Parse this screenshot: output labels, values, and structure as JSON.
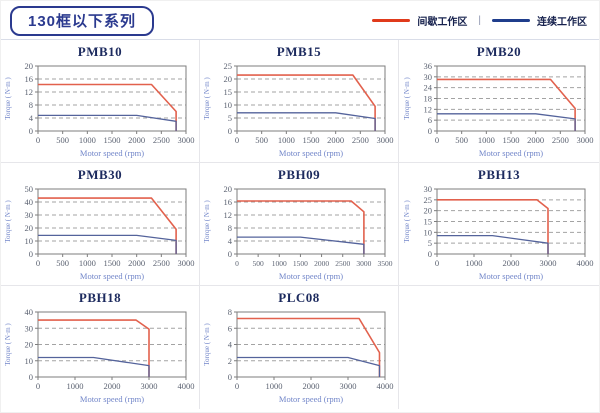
{
  "header": {
    "title": "130框以下系列",
    "legend_separator": "|",
    "legend": [
      {
        "key": "intermittent",
        "label": "间歇工作区",
        "color": "#e03a1b"
      },
      {
        "key": "continuous",
        "label": "连续工作区",
        "color": "#1f3d8c"
      }
    ]
  },
  "colors": {
    "accent_navy": "#2b3a8f",
    "curve_red": "#e2614d",
    "curve_blue": "#54639b",
    "grid_line": "#a3a3a3",
    "axis_text": "#5c6372",
    "axis_label_blue": "#7286c9"
  },
  "chart_data": [
    {
      "type": "line",
      "title": "PMB10",
      "xlabel": "Motor speed (rpm)",
      "ylabel": "Torque ( N·m )",
      "xlim": [
        0,
        3000
      ],
      "ylim": [
        0,
        20
      ],
      "xticks": [
        0,
        500,
        1000,
        1500,
        2000,
        2500,
        3000
      ],
      "yticks": [
        0,
        4,
        8,
        12,
        16,
        20
      ],
      "series": [
        {
          "name": "间歇工作区",
          "key": "intermittent",
          "color": "#e2614d",
          "width": 1.6,
          "points": [
            [
              0,
              14.3
            ],
            [
              2300,
              14.3
            ],
            [
              2800,
              6
            ],
            [
              2800,
              0
            ]
          ]
        },
        {
          "name": "连续工作区",
          "key": "continuous",
          "color": "#54639b",
          "width": 1.3,
          "points": [
            [
              0,
              4.8
            ],
            [
              2000,
              4.8
            ],
            [
              2800,
              3
            ],
            [
              2800,
              0
            ]
          ]
        }
      ]
    },
    {
      "type": "line",
      "title": "PMB15",
      "xlabel": "Motor speed (rpm)",
      "ylabel": "Torque ( N·m )",
      "xlim": [
        0,
        3000
      ],
      "ylim": [
        0,
        25
      ],
      "xticks": [
        0,
        500,
        1000,
        1500,
        2000,
        2500,
        3000
      ],
      "yticks": [
        0,
        5,
        10,
        15,
        20,
        25
      ],
      "series": [
        {
          "name": "间歇工作区",
          "key": "intermittent",
          "color": "#e2614d",
          "width": 1.6,
          "points": [
            [
              0,
              21.5
            ],
            [
              2350,
              21.5
            ],
            [
              2800,
              9.5
            ],
            [
              2800,
              0
            ]
          ]
        },
        {
          "name": "连续工作区",
          "key": "continuous",
          "color": "#54639b",
          "width": 1.3,
          "points": [
            [
              0,
              7
            ],
            [
              2000,
              7
            ],
            [
              2800,
              4.8
            ],
            [
              2800,
              0
            ]
          ]
        }
      ]
    },
    {
      "type": "line",
      "title": "PMB20",
      "xlabel": "Motor speed (rpm)",
      "ylabel": "Torque ( N·m )",
      "xlim": [
        0,
        3000
      ],
      "ylim": [
        0,
        36
      ],
      "xticks": [
        0,
        500,
        1000,
        1500,
        2000,
        2500,
        3000
      ],
      "yticks": [
        0,
        6,
        12,
        18,
        24,
        30,
        36
      ],
      "series": [
        {
          "name": "间歇工作区",
          "key": "intermittent",
          "color": "#e2614d",
          "width": 1.6,
          "points": [
            [
              0,
              28.6
            ],
            [
              2300,
              28.6
            ],
            [
              2800,
              12.5
            ],
            [
              2800,
              0
            ]
          ]
        },
        {
          "name": "连续工作区",
          "key": "continuous",
          "color": "#54639b",
          "width": 1.3,
          "points": [
            [
              0,
              9.5
            ],
            [
              2000,
              9.5
            ],
            [
              2800,
              6.7
            ],
            [
              2800,
              0
            ]
          ]
        }
      ]
    },
    {
      "type": "line",
      "title": "PMB30",
      "xlabel": "Motor speed (rpm)",
      "ylabel": "Torque ( N·m )",
      "xlim": [
        0,
        3000
      ],
      "ylim": [
        0,
        50
      ],
      "xticks": [
        0,
        500,
        1000,
        1500,
        2000,
        2500,
        3000
      ],
      "yticks": [
        0,
        10,
        20,
        30,
        40,
        50
      ],
      "series": [
        {
          "name": "间歇工作区",
          "key": "intermittent",
          "color": "#e2614d",
          "width": 1.6,
          "points": [
            [
              0,
              43
            ],
            [
              2300,
              43
            ],
            [
              2800,
              19
            ],
            [
              2800,
              0
            ]
          ]
        },
        {
          "name": "连续工作区",
          "key": "continuous",
          "color": "#54639b",
          "width": 1.3,
          "points": [
            [
              0,
              14.3
            ],
            [
              2000,
              14.3
            ],
            [
              2800,
              10.5
            ],
            [
              2800,
              0
            ]
          ]
        }
      ]
    },
    {
      "type": "line",
      "title": "PBH09",
      "xlabel": "Motor speed (rpm)",
      "ylabel": "Torque ( N·m )",
      "xlim": [
        0,
        3500
      ],
      "ylim": [
        0,
        20
      ],
      "xticks": [
        0,
        500,
        1000,
        1500,
        2000,
        2500,
        3000,
        3500
      ],
      "yticks": [
        0,
        4,
        8,
        12,
        16,
        20
      ],
      "series": [
        {
          "name": "间歇工作区",
          "key": "intermittent",
          "color": "#e2614d",
          "width": 1.6,
          "points": [
            [
              0,
              16.3
            ],
            [
              2700,
              16.3
            ],
            [
              3000,
              13
            ],
            [
              3000,
              0
            ]
          ]
        },
        {
          "name": "连续工作区",
          "key": "continuous",
          "color": "#54639b",
          "width": 1.3,
          "points": [
            [
              0,
              5.2
            ],
            [
              1500,
              5.2
            ],
            [
              3000,
              3
            ],
            [
              3000,
              0
            ]
          ]
        }
      ]
    },
    {
      "type": "line",
      "title": "PBH13",
      "xlabel": "Motor speed (rpm)",
      "ylabel": "Torque ( N·m )",
      "xlim": [
        0,
        4000
      ],
      "ylim": [
        0,
        30
      ],
      "xticks": [
        0,
        1000,
        2000,
        3000,
        4000
      ],
      "yticks": [
        0,
        5,
        10,
        15,
        20,
        25,
        30
      ],
      "series": [
        {
          "name": "间歇工作区",
          "key": "intermittent",
          "color": "#e2614d",
          "width": 1.6,
          "points": [
            [
              0,
              25
            ],
            [
              2700,
              25
            ],
            [
              3000,
              21
            ],
            [
              3000,
              0
            ]
          ]
        },
        {
          "name": "连续工作区",
          "key": "continuous",
          "color": "#54639b",
          "width": 1.3,
          "points": [
            [
              0,
              8.5
            ],
            [
              1500,
              8.5
            ],
            [
              3000,
              5
            ],
            [
              3000,
              0
            ]
          ]
        }
      ]
    },
    {
      "type": "line",
      "title": "PBH18",
      "xlabel": "Motor speed (rpm)",
      "ylabel": "Torque ( N·m )",
      "xlim": [
        0,
        4000
      ],
      "ylim": [
        0,
        40
      ],
      "xticks": [
        0,
        1000,
        2000,
        3000,
        4000
      ],
      "yticks": [
        0,
        10,
        20,
        30,
        40
      ],
      "series": [
        {
          "name": "间歇工作区",
          "key": "intermittent",
          "color": "#e2614d",
          "width": 1.6,
          "points": [
            [
              0,
              35
            ],
            [
              2650,
              35
            ],
            [
              3000,
              29.5
            ],
            [
              3000,
              0
            ]
          ]
        },
        {
          "name": "连续工作区",
          "key": "continuous",
          "color": "#54639b",
          "width": 1.3,
          "points": [
            [
              0,
              12
            ],
            [
              1500,
              12
            ],
            [
              3000,
              7
            ],
            [
              3000,
              0
            ]
          ]
        }
      ]
    },
    {
      "type": "line",
      "title": "PLC08",
      "xlabel": "Motor speed (rpm)",
      "ylabel": "Torque ( N·m )",
      "xlim": [
        0,
        4000
      ],
      "ylim": [
        0,
        8
      ],
      "xticks": [
        0,
        1000,
        2000,
        3000,
        4000
      ],
      "yticks": [
        0,
        2,
        4,
        6,
        8
      ],
      "series": [
        {
          "name": "间歇工作区",
          "key": "intermittent",
          "color": "#e2614d",
          "width": 1.6,
          "points": [
            [
              0,
              7.2
            ],
            [
              3300,
              7.2
            ],
            [
              3850,
              3
            ],
            [
              3850,
              0
            ]
          ]
        },
        {
          "name": "连续工作区",
          "key": "continuous",
          "color": "#54639b",
          "width": 1.3,
          "points": [
            [
              0,
              2.4
            ],
            [
              3000,
              2.4
            ],
            [
              3850,
              1.4
            ],
            [
              3850,
              0
            ]
          ]
        }
      ]
    }
  ]
}
